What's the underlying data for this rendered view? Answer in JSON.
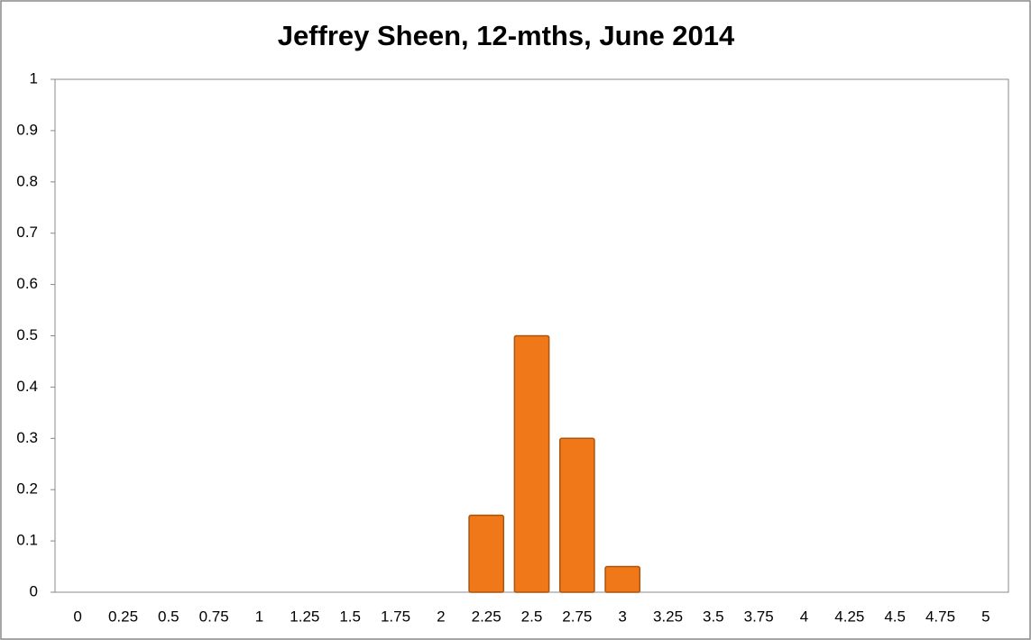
{
  "chart_data": {
    "type": "bar",
    "title": "Jeffrey Sheen, 12-mths, June 2014",
    "categories": [
      "0",
      "0.25",
      "0.5",
      "0.75",
      "1",
      "1.25",
      "1.5",
      "1.75",
      "2",
      "2.25",
      "2.5",
      "2.75",
      "3",
      "3.25",
      "3.5",
      "3.75",
      "4",
      "4.25",
      "4.5",
      "4.75",
      "5"
    ],
    "values": [
      0,
      0,
      0,
      0,
      0,
      0,
      0,
      0,
      0,
      0.15,
      0.5,
      0.3,
      0.05,
      0,
      0,
      0,
      0,
      0,
      0,
      0,
      0
    ],
    "color": "#f07818",
    "ylim": [
      0,
      1
    ],
    "yticks": [
      0,
      0.1,
      0.2,
      0.3,
      0.4,
      0.5,
      0.6,
      0.7,
      0.8,
      0.9,
      1
    ],
    "grid": false
  }
}
